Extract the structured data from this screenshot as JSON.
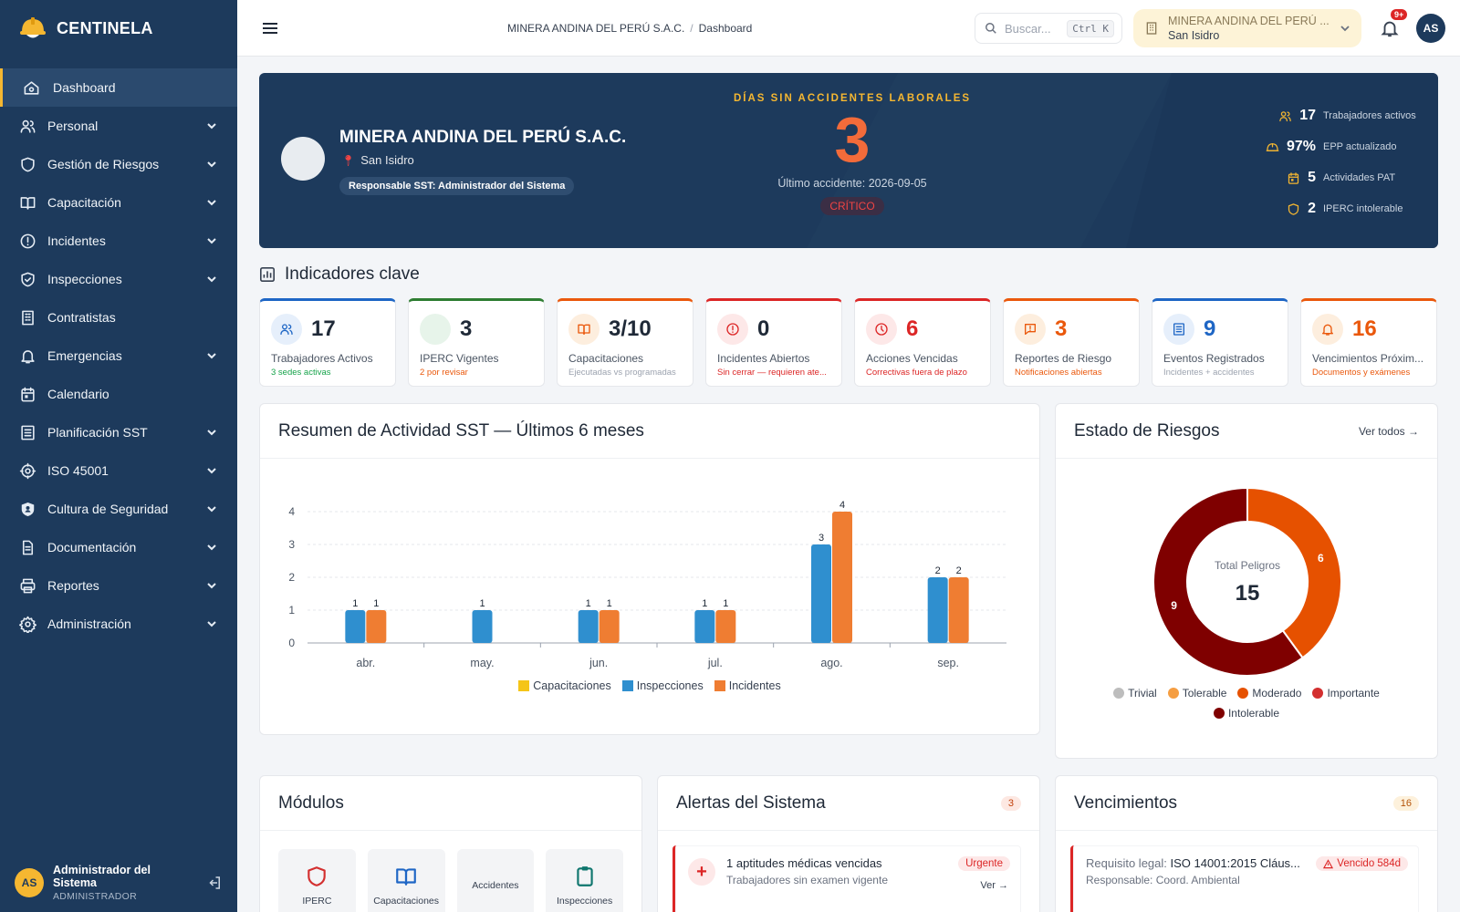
{
  "brand": {
    "name": "CENTINELA"
  },
  "sidebar": {
    "items": [
      {
        "label": "Dashboard",
        "icon": "home-icon",
        "active": true,
        "chevron": false
      },
      {
        "label": "Personal",
        "icon": "users-icon",
        "chevron": true
      },
      {
        "label": "Gestión de Riesgos",
        "icon": "shield-icon",
        "chevron": true
      },
      {
        "label": "Capacitación",
        "icon": "book-icon",
        "chevron": true
      },
      {
        "label": "Incidentes",
        "icon": "alert-circle-icon",
        "chevron": true
      },
      {
        "label": "Inspecciones",
        "icon": "shield-check-icon",
        "chevron": true
      },
      {
        "label": "Contratistas",
        "icon": "building-icon",
        "chevron": false
      },
      {
        "label": "Emergencias",
        "icon": "bell-icon",
        "chevron": true
      },
      {
        "label": "Calendario",
        "icon": "calendar-icon",
        "chevron": false
      },
      {
        "label": "Planificación SST",
        "icon": "list-icon",
        "chevron": true
      },
      {
        "label": "ISO 45001",
        "icon": "cog-badge-icon",
        "chevron": true
      },
      {
        "label": "Cultura de Seguridad",
        "icon": "shield-user-icon",
        "chevron": true
      },
      {
        "label": "Documentación",
        "icon": "document-icon",
        "chevron": true
      },
      {
        "label": "Reportes",
        "icon": "printer-icon",
        "chevron": true
      },
      {
        "label": "Administración",
        "icon": "gear-icon",
        "chevron": true
      }
    ],
    "user": {
      "initials": "AS",
      "name": "Administrador del Sistema",
      "role": "ADMINISTRADOR"
    }
  },
  "header": {
    "breadcrumb": {
      "company": "MINERA ANDINA DEL PERÚ S.A.C.",
      "separator": "/",
      "page": "Dashboard"
    },
    "search": {
      "placeholder": "Buscar...",
      "shortcut": "Ctrl K"
    },
    "company_selector": {
      "name": "MINERA ANDINA DEL PERÚ ...",
      "site": "San Isidro"
    },
    "notifications_badge": "9+",
    "avatar_initials": "AS"
  },
  "hero": {
    "company": "MINERA ANDINA DEL PERÚ S.A.C.",
    "site": "San Isidro",
    "responsable": "Responsable SST: Administrador del Sistema",
    "days_label": "DÍAS SIN ACCIDENTES LABORALES",
    "days_value": "3",
    "last_accident": "Último accidente: 2026-09-05",
    "status": "CRÍTICO",
    "stats": [
      {
        "icon": "users-icon",
        "value": "17",
        "label": "Trabajadores activos"
      },
      {
        "icon": "helmet-icon",
        "value": "97%",
        "label": "EPP actualizado"
      },
      {
        "icon": "calendar-icon",
        "value": "5",
        "label": "Actividades PAT"
      },
      {
        "icon": "shield-icon",
        "value": "2",
        "label": "IPERC intolerable"
      }
    ]
  },
  "indicators": {
    "title": "Indicadores clave",
    "kpis": [
      {
        "value": "17",
        "label": "Trabajadores Activos",
        "sub": "3 sedes activas",
        "accent": "#1e66c5",
        "value_color": "#1f2937",
        "sub_color": "#16a34a",
        "icon_bg": "#e6effb",
        "icon": "users-icon",
        "icon_color": "#1e66c5"
      },
      {
        "value": "3",
        "label": "IPERC Vigentes",
        "sub": "2 por revisar",
        "accent": "#2e7d32",
        "value_color": "#1f2937",
        "sub_color": "#ea580c",
        "icon_bg": "#e7f4ea",
        "icon": "",
        "icon_color": "#2e7d32"
      },
      {
        "value": "3/10",
        "label": "Capacitaciones",
        "sub": "Ejecutadas vs programadas",
        "accent": "#ea580c",
        "value_color": "#1f2937",
        "sub_color": "#9ca3af",
        "icon_bg": "#fdeede",
        "icon": "book-icon",
        "icon_color": "#ea580c"
      },
      {
        "value": "0",
        "label": "Incidentes Abiertos",
        "sub": "Sin cerrar — requieren ate...",
        "accent": "#dc2626",
        "value_color": "#1f2937",
        "sub_color": "#dc2626",
        "icon_bg": "#fde8e8",
        "icon": "alert-circle-icon",
        "icon_color": "#dc2626"
      },
      {
        "value": "6",
        "label": "Acciones Vencidas",
        "sub": "Correctivas fuera de plazo",
        "accent": "#dc2626",
        "value_color": "#dc2626",
        "sub_color": "#dc2626",
        "icon_bg": "#fde8e8",
        "icon": "clock-icon",
        "icon_color": "#dc2626"
      },
      {
        "value": "3",
        "label": "Reportes de Riesgo",
        "sub": "Notificaciones abiertas",
        "accent": "#ea580c",
        "value_color": "#ea580c",
        "sub_color": "#ea580c",
        "icon_bg": "#fdeede",
        "icon": "message-alert-icon",
        "icon_color": "#ea580c"
      },
      {
        "value": "9",
        "label": "Eventos Registrados",
        "sub": "Incidentes + accidentes",
        "accent": "#1e66c5",
        "value_color": "#1e66c5",
        "sub_color": "#9ca3af",
        "icon_bg": "#e6effb",
        "icon": "list-icon",
        "icon_color": "#1e66c5"
      },
      {
        "value": "16",
        "label": "Vencimientos Próxim...",
        "sub": "Documentos y exámenes",
        "accent": "#ea580c",
        "value_color": "#ea580c",
        "sub_color": "#ea580c",
        "icon_bg": "#fdeede",
        "icon": "bell-icon",
        "icon_color": "#ea580c"
      }
    ]
  },
  "activity": {
    "title": "Resumen de Actividad SST — Últimos 6 meses"
  },
  "risks": {
    "title": "Estado de Riesgos",
    "link": "Ver todos →"
  },
  "chart_data": [
    {
      "type": "bar",
      "title": "Resumen de Actividad SST — Últimos 6 meses",
      "categories": [
        "abr.",
        "may.",
        "jun.",
        "jul.",
        "ago.",
        "sep."
      ],
      "series": [
        {
          "name": "Capacitaciones",
          "color": "#f5c518",
          "values": [
            0,
            0,
            0,
            0,
            0,
            0
          ]
        },
        {
          "name": "Inspecciones",
          "color": "#2f8fcf",
          "values": [
            1,
            1,
            1,
            1,
            3,
            2
          ]
        },
        {
          "name": "Incidentes",
          "color": "#ef7d32",
          "values": [
            1,
            0,
            1,
            1,
            4,
            2
          ]
        }
      ],
      "ylim": [
        0,
        4
      ],
      "yticks": [
        "0",
        "1",
        "2",
        "3",
        "4"
      ],
      "grid": true,
      "legend": "bottom"
    },
    {
      "type": "pie",
      "title": "Estado de Riesgos",
      "center_label": "Total Peligros",
      "center_value": "15",
      "slices": [
        {
          "name": "Trivial",
          "value": 0,
          "color": "#bdbdbd"
        },
        {
          "name": "Tolerable",
          "value": 0,
          "color": "#f59e42"
        },
        {
          "name": "Moderado",
          "value": 6,
          "color": "#e65100"
        },
        {
          "name": "Importante",
          "value": 0,
          "color": "#d32f2f"
        },
        {
          "name": "Intolerable",
          "value": 9,
          "color": "#7f0000"
        }
      ],
      "legend": "bottom"
    }
  ],
  "modulos": {
    "title": "Módulos",
    "items": [
      {
        "label": "IPERC",
        "icon": "shield-icon",
        "color": "#d32f2f"
      },
      {
        "label": "Capacitaciones",
        "icon": "book-icon",
        "color": "#1e66c5"
      },
      {
        "label": "Accidentes",
        "icon": "",
        "color": "#6b7280"
      },
      {
        "label": "Inspecciones",
        "icon": "clipboard-icon",
        "color": "#0f766e"
      }
    ]
  },
  "alertas": {
    "title": "Alertas del Sistema",
    "count": "3",
    "items": [
      {
        "icon": "plus-medical-icon",
        "title": "1 aptitudes médicas vencidas",
        "sub": "Trabajadores sin examen vigente",
        "tag": "Urgente",
        "link": "Ver →"
      }
    ]
  },
  "vencimientos": {
    "title": "Vencimientos",
    "count": "16",
    "items": [
      {
        "prefix": "Requisito legal:",
        "title": "ISO 14001:2015 Cláus...",
        "sub": "Responsable: Coord. Ambiental",
        "tag": "Vencido 584d"
      }
    ]
  }
}
